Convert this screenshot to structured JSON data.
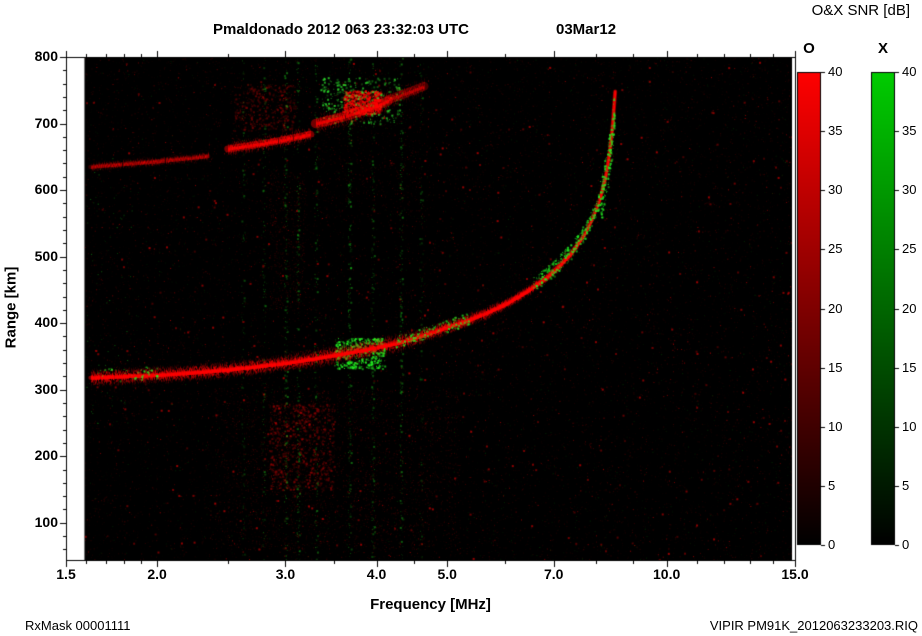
{
  "header": {
    "title": "Pmaldonado 2012 063 23:32:03 UTC",
    "date": "03Mar12",
    "colorbar_title": "O&X SNR [dB]"
  },
  "footer": {
    "left": "RxMask 00001111",
    "right": "VIPIR  PM91K_2012063233203.RIQ"
  },
  "chart_data": {
    "type": "heatmap",
    "title": "Pmaldonado 2012 063 23:32:03 UTC",
    "subtitle": "03Mar12",
    "xlabel": "Frequency [MHz]",
    "ylabel": "Range [km]",
    "x_scale": "log",
    "xlim": [
      1.5,
      15.0
    ],
    "ylim": [
      44,
      800
    ],
    "x_major_ticks": [
      {
        "value": 1.5,
        "label": "1.5"
      },
      {
        "value": 2.0,
        "label": "2.0"
      },
      {
        "value": 3.0,
        "label": "3.0"
      },
      {
        "value": 4.0,
        "label": "4.0"
      },
      {
        "value": 5.0,
        "label": "5.0"
      },
      {
        "value": 7.0,
        "label": "7.0"
      },
      {
        "value": 10.0,
        "label": "10.0"
      },
      {
        "value": 15.0,
        "label": "15.0"
      }
    ],
    "x_minor_ticks": [
      1.6,
      1.7,
      1.8,
      1.9,
      2.5,
      3.5,
      4.5,
      6,
      8,
      9,
      11,
      12,
      13,
      14
    ],
    "y_major_ticks": [
      {
        "value": 100,
        "label": "100"
      },
      {
        "value": 200,
        "label": "200"
      },
      {
        "value": 300,
        "label": "300"
      },
      {
        "value": 400,
        "label": "400"
      },
      {
        "value": 500,
        "label": "500"
      },
      {
        "value": 600,
        "label": "600"
      },
      {
        "value": 700,
        "label": "700"
      },
      {
        "value": 800,
        "label": "800"
      }
    ],
    "y_minor_step": 20,
    "data_freq_range": [
      1.59,
      14.86
    ],
    "plot_background": "#000000",
    "colorbars": {
      "title": "O&X SNR [dB]",
      "range": [
        0,
        40
      ],
      "ticks": [
        0,
        5,
        10,
        15,
        20,
        25,
        30,
        35,
        40
      ],
      "bars": [
        {
          "label": "O",
          "top_color": "#ff0000",
          "bottom_color": "#000000"
        },
        {
          "label": "X",
          "top_color": "#00cc00",
          "bottom_color": "#000000"
        }
      ]
    },
    "traces": {
      "o_first_hop": {
        "color": "#ff0000",
        "critical_frequency_mhz": 8.5,
        "points": [
          [
            1.62,
            318,
            9
          ],
          [
            1.8,
            320,
            9
          ],
          [
            2.0,
            322,
            9
          ],
          [
            2.2,
            325,
            9
          ],
          [
            2.5,
            330,
            9
          ],
          [
            2.8,
            336,
            9
          ],
          [
            3.0,
            340,
            9
          ],
          [
            3.3,
            347,
            10
          ],
          [
            3.6,
            354,
            10
          ],
          [
            3.9,
            361,
            10
          ],
          [
            4.2,
            368,
            10
          ],
          [
            4.5,
            377,
            9
          ],
          [
            4.8,
            387,
            8
          ],
          [
            5.0,
            394,
            8
          ],
          [
            5.3,
            403,
            7
          ],
          [
            5.6,
            413,
            7
          ],
          [
            6.0,
            428,
            6
          ],
          [
            6.4,
            446,
            6
          ],
          [
            6.8,
            466,
            5
          ],
          [
            7.1,
            484,
            5
          ],
          [
            7.4,
            505,
            5
          ],
          [
            7.7,
            532,
            4
          ],
          [
            7.9,
            556,
            4
          ],
          [
            8.1,
            586,
            4
          ],
          [
            8.25,
            620,
            3.5
          ],
          [
            8.35,
            655,
            3
          ],
          [
            8.43,
            695,
            3
          ],
          [
            8.5,
            748,
            2.5
          ]
        ]
      },
      "second_hop_segments": [
        {
          "alpha": 0.38,
          "points": [
            [
              1.62,
              635,
              5
            ],
            [
              2.0,
              643,
              5
            ],
            [
              2.35,
              651,
              5
            ]
          ]
        },
        {
          "alpha": 0.85,
          "points": [
            [
              2.5,
              662,
              8
            ],
            [
              2.8,
              670,
              8
            ],
            [
              3.0,
              676,
              8
            ],
            [
              3.25,
              684,
              8
            ]
          ]
        },
        {
          "alpha": 0.8,
          "points": [
            [
              3.3,
              700,
              11
            ],
            [
              3.6,
              710,
              11
            ],
            [
              3.9,
              722,
              12
            ],
            [
              4.15,
              734,
              12
            ]
          ]
        },
        {
          "alpha": 0.5,
          "points": [
            [
              4.15,
              736,
              10
            ],
            [
              4.4,
              746,
              10
            ],
            [
              4.65,
              756,
              9
            ]
          ]
        }
      ]
    },
    "green_on_trace": [
      {
        "f": [
          1.62,
          2.0
        ],
        "offset_km": 4,
        "spread_km": 10,
        "n": 40
      },
      {
        "f": [
          4.25,
          5.35
        ],
        "offset_km": 3,
        "spread_km": 9,
        "n": 130
      },
      {
        "f": [
          6.55,
          8.1
        ],
        "offset_km": 5,
        "spread_km": 12,
        "n": 260
      },
      {
        "f": [
          8.1,
          8.47
        ],
        "offset_km": 0,
        "spread_km": 35,
        "n": 160
      }
    ],
    "clouds": [
      {
        "f": [
          2.4,
          5.2
        ],
        "r": [
          60,
          300
        ],
        "color": "#ff0000",
        "n": 2200,
        "a": [
          0.04,
          0.22
        ],
        "s": 1
      },
      {
        "f": [
          2.85,
          3.5
        ],
        "r": [
          150,
          280
        ],
        "color": "#ff0000",
        "n": 800,
        "a": [
          0.08,
          0.35
        ],
        "s": 2
      },
      {
        "f": [
          2.85,
          3.2
        ],
        "r": [
          420,
          630
        ],
        "color": "#ff0000",
        "n": 420,
        "a": [
          0.05,
          0.22
        ],
        "s": 1
      },
      {
        "f": [
          2.55,
          3.1
        ],
        "r": [
          690,
          760
        ],
        "color": "#ff0000",
        "n": 420,
        "a": [
          0.05,
          0.3
        ],
        "s": 2
      },
      {
        "f": [
          3.3,
          4.6
        ],
        "r": [
          560,
          700
        ],
        "color": "#ff0000",
        "n": 320,
        "a": [
          0.04,
          0.18
        ],
        "s": 1
      },
      {
        "f": [
          3.6,
          4.05
        ],
        "r": [
          715,
          750
        ],
        "color": "#ff0000",
        "n": 650,
        "a": [
          0.25,
          0.85
        ],
        "s": 2
      },
      {
        "f": [
          3.35,
          4.3
        ],
        "r": [
          700,
          770
        ],
        "color": "#2ee62e",
        "n": 330,
        "a": [
          0.2,
          0.8
        ],
        "s": 2
      },
      {
        "f": [
          3.5,
          4.1
        ],
        "r": [
          332,
          378
        ],
        "color": "#22ee22",
        "n": 430,
        "a": [
          0.3,
          1.0
        ],
        "s": 2
      },
      {
        "f": [
          1.6,
          1.85
        ],
        "r": [
          250,
          650
        ],
        "color": "#22ee22",
        "n": 60,
        "a": [
          0.1,
          0.5
        ],
        "s": 1
      }
    ],
    "rfi_columns": [
      {
        "f": 2.62,
        "n": 90,
        "color": "#1ecc1e",
        "a": [
          0.08,
          0.4
        ]
      },
      {
        "f": 2.8,
        "n": 120,
        "color": "#1ecc1e",
        "a": [
          0.08,
          0.45
        ]
      },
      {
        "f": 3.0,
        "n": 170,
        "color": "#1ecc1e",
        "a": [
          0.1,
          0.5
        ]
      },
      {
        "f": 3.12,
        "n": 150,
        "color": "#1ecc1e",
        "a": [
          0.1,
          0.5
        ]
      },
      {
        "f": 3.3,
        "n": 130,
        "color": "#1ecc1e",
        "a": [
          0.08,
          0.45
        ]
      },
      {
        "f": 3.67,
        "n": 190,
        "color": "#1ecc1e",
        "a": [
          0.1,
          0.5
        ]
      },
      {
        "f": 3.95,
        "n": 150,
        "color": "#1ecc1e",
        "a": [
          0.08,
          0.45
        ]
      },
      {
        "f": 4.32,
        "n": 190,
        "color": "#1ecc1e",
        "a": [
          0.1,
          0.5
        ]
      },
      {
        "f": 4.6,
        "n": 90,
        "color": "#1ecc1e",
        "a": [
          0.06,
          0.35
        ]
      }
    ],
    "noise": {
      "red_count": 15000,
      "bright_red_count": 1200,
      "green_count": 2600
    }
  }
}
